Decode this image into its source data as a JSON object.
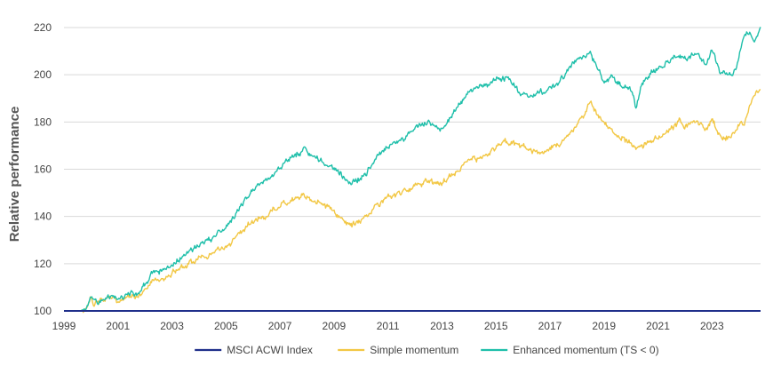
{
  "chart_data": {
    "type": "line",
    "title": "",
    "xlabel": "",
    "ylabel": "Relative performance",
    "xlim": [
      1999,
      2024.8
    ],
    "ylim": [
      100,
      220
    ],
    "yticks": [
      100,
      120,
      140,
      160,
      180,
      200,
      220
    ],
    "xticks": [
      "1999",
      "2001",
      "2003",
      "2005",
      "2007",
      "2009",
      "2011",
      "2013",
      "2015",
      "2017",
      "2019",
      "2021",
      "2023"
    ],
    "grid": "horizontal",
    "legend_position": "bottom",
    "series": [
      {
        "name": "MSCI ACWI Index",
        "color": "#1f2f8a",
        "x": [
          1999,
          2024.8
        ],
        "values": [
          100,
          100
        ]
      },
      {
        "name": "Simple momentum",
        "color": "#f2c744",
        "x": [
          1999.0,
          1999.6,
          1999.8,
          2000.0,
          2000.1,
          2000.3,
          2000.5,
          2000.8,
          2001.0,
          2001.5,
          2001.8,
          2002.0,
          2002.3,
          2002.6,
          2003.0,
          2003.5,
          2004.0,
          2004.5,
          2005.0,
          2005.5,
          2006.0,
          2006.4,
          2006.8,
          2007.2,
          2007.6,
          2007.9,
          2008.2,
          2008.5,
          2008.8,
          2009.0,
          2009.3,
          2009.6,
          2010.0,
          2010.3,
          2010.6,
          2011.0,
          2011.5,
          2012.0,
          2012.5,
          2013.0,
          2013.5,
          2014.0,
          2014.5,
          2015.0,
          2015.4,
          2015.8,
          2016.3,
          2016.8,
          2017.3,
          2017.8,
          2018.2,
          2018.5,
          2018.8,
          2019.0,
          2019.3,
          2019.6,
          2020.0,
          2020.2,
          2020.4,
          2020.7,
          2021.0,
          2021.4,
          2021.8,
          2022.0,
          2022.4,
          2022.8,
          2023.0,
          2023.3,
          2023.6,
          2023.9,
          2024.0,
          2024.2,
          2024.4,
          2024.6,
          2024.8
        ],
        "values": [
          100,
          100,
          101,
          106,
          103,
          104,
          105,
          106,
          104,
          107,
          106,
          109,
          113,
          114,
          116,
          119,
          122,
          124,
          127,
          133,
          138,
          140,
          143,
          146,
          148,
          149,
          147,
          146,
          144,
          142,
          139,
          137,
          138,
          141,
          145,
          148,
          150,
          153,
          155,
          154,
          159,
          164,
          165,
          169,
          172,
          171,
          168,
          167,
          170,
          176,
          182,
          188,
          183,
          180,
          176,
          174,
          171,
          168,
          170,
          172,
          173,
          176,
          180,
          178,
          181,
          176,
          181,
          174,
          173,
          176,
          179,
          178,
          187,
          192,
          194
        ]
      },
      {
        "name": "Enhanced momentum (TS < 0)",
        "color": "#1fbfaa",
        "x": [
          1999.0,
          1999.6,
          1999.8,
          2000.0,
          2000.1,
          2000.3,
          2000.5,
          2000.8,
          2001.0,
          2001.5,
          2001.8,
          2002.0,
          2002.3,
          2002.6,
          2003.0,
          2003.5,
          2004.0,
          2004.5,
          2005.0,
          2005.5,
          2006.0,
          2006.4,
          2006.8,
          2007.2,
          2007.6,
          2007.9,
          2008.2,
          2008.5,
          2008.8,
          2009.0,
          2009.3,
          2009.6,
          2010.0,
          2010.3,
          2010.6,
          2011.0,
          2011.5,
          2012.0,
          2012.5,
          2013.0,
          2013.5,
          2014.0,
          2014.5,
          2015.0,
          2015.4,
          2015.8,
          2016.3,
          2016.8,
          2017.3,
          2017.8,
          2018.2,
          2018.5,
          2018.8,
          2019.0,
          2019.3,
          2019.6,
          2020.0,
          2020.2,
          2020.4,
          2020.7,
          2021.0,
          2021.4,
          2021.8,
          2022.0,
          2022.4,
          2022.8,
          2023.0,
          2023.3,
          2023.6,
          2023.9,
          2024.0,
          2024.2,
          2024.4,
          2024.6,
          2024.8
        ],
        "values": [
          100,
          100,
          101,
          106,
          104,
          103,
          105,
          106,
          105,
          108,
          107,
          111,
          116,
          117,
          119,
          124,
          128,
          131,
          135,
          143,
          151,
          155,
          158,
          163,
          166,
          168,
          165,
          163,
          162,
          160,
          157,
          155,
          156,
          160,
          165,
          170,
          172,
          178,
          180,
          177,
          185,
          193,
          195,
          198,
          199,
          193,
          191,
          193,
          196,
          204,
          208,
          210,
          202,
          196,
          199,
          196,
          194,
          186,
          196,
          200,
          203,
          206,
          208,
          207,
          209,
          204,
          211,
          201,
          199,
          203,
          208,
          217,
          218,
          214,
          220
        ]
      }
    ]
  }
}
